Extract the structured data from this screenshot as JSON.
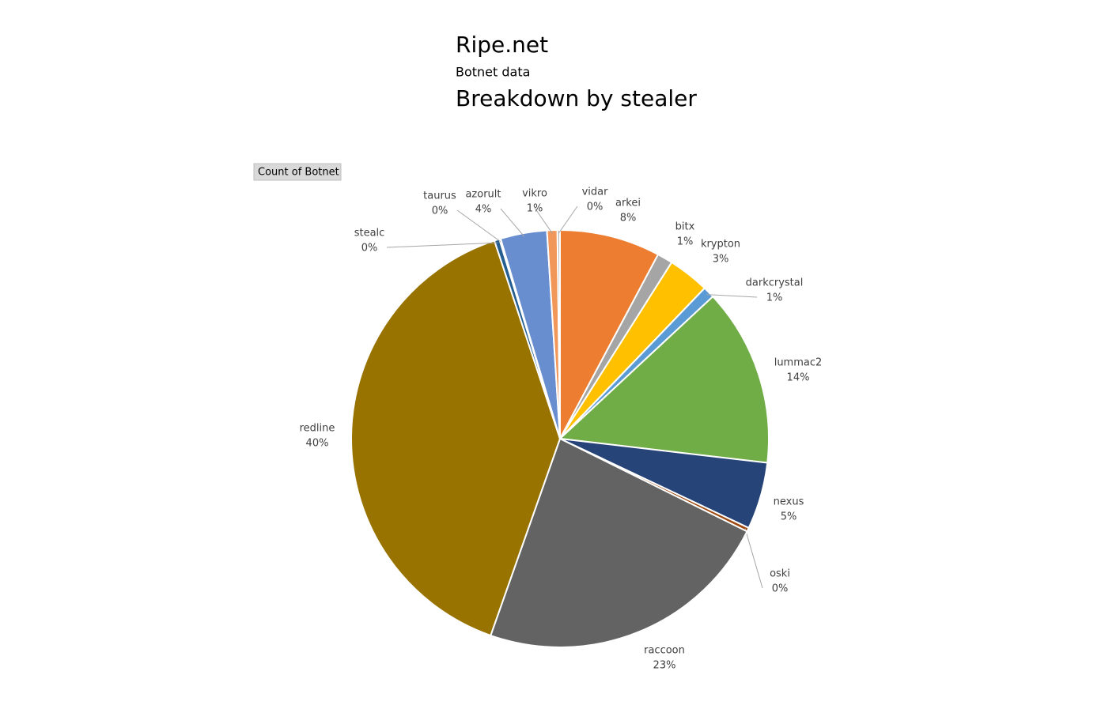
{
  "title": "Ripe.net",
  "subtitle": "Botnet data",
  "button": "Count of Botnet",
  "chart_data": {
    "type": "pie",
    "title": "Breakdown by stealer",
    "categories": [
      "arkei",
      "bitx",
      "krypton",
      "darkcrystal",
      "lummac2",
      "nexus",
      "oski",
      "raccoon",
      "redline",
      "stealc",
      "taurus",
      "azorult",
      "vikro",
      "vidar"
    ],
    "values": [
      7.8,
      1.2,
      3.2,
      0.9,
      13.8,
      5.2,
      0.3,
      23.1,
      39.6,
      0.4,
      0.1,
      3.6,
      0.8,
      0.2
    ],
    "value_labels": [
      "8%",
      "1%",
      "3%",
      "1%",
      "14%",
      "5%",
      "0%",
      "23%",
      "40%",
      "0%",
      "0%",
      "4%",
      "1%",
      "0%"
    ],
    "colors": [
      "#ed7d31",
      "#a5a5a5",
      "#ffc000",
      "#5b9bd5",
      "#70ad47",
      "#264478",
      "#9e480e",
      "#636363",
      "#997300",
      "#255e91",
      "#43682b",
      "#698ed0",
      "#f1975a",
      "#b7b7b7"
    ]
  }
}
